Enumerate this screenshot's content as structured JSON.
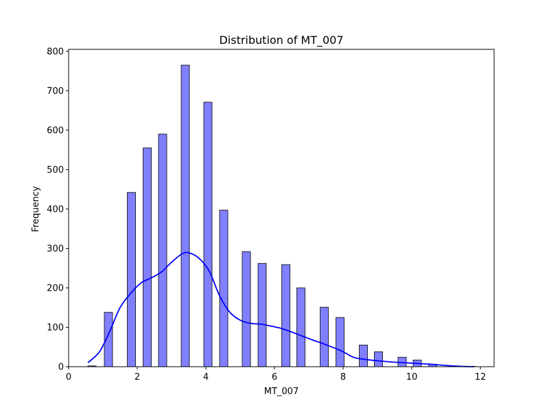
{
  "chart_data": {
    "type": "bar",
    "title": "Distribution of MT_007",
    "xlabel": "MT_007",
    "ylabel": "Frequency",
    "xlim": [
      0,
      12.4
    ],
    "ylim": [
      0,
      805
    ],
    "xticks": [
      0,
      2,
      4,
      6,
      8,
      10,
      12
    ],
    "yticks": [
      0,
      100,
      200,
      300,
      400,
      500,
      600,
      700,
      800
    ],
    "bin_width": 0.24,
    "bins": [
      {
        "x0": 0.56,
        "value": 2
      },
      {
        "x0": 1.04,
        "value": 138
      },
      {
        "x0": 1.71,
        "value": 442
      },
      {
        "x0": 2.17,
        "value": 555
      },
      {
        "x0": 2.62,
        "value": 590
      },
      {
        "x0": 3.28,
        "value": 765
      },
      {
        "x0": 3.94,
        "value": 671
      },
      {
        "x0": 4.4,
        "value": 397
      },
      {
        "x0": 5.06,
        "value": 292
      },
      {
        "x0": 5.52,
        "value": 262
      },
      {
        "x0": 6.21,
        "value": 259
      },
      {
        "x0": 6.65,
        "value": 200
      },
      {
        "x0": 7.33,
        "value": 151
      },
      {
        "x0": 7.79,
        "value": 125
      },
      {
        "x0": 8.47,
        "value": 55
      },
      {
        "x0": 8.91,
        "value": 38
      },
      {
        "x0": 9.6,
        "value": 24
      },
      {
        "x0": 10.04,
        "value": 17
      },
      {
        "x0": 10.49,
        "value": 6
      },
      {
        "x0": 11.17,
        "value": 1
      },
      {
        "x0": 11.62,
        "value": 1
      }
    ],
    "kde": {
      "x": [
        0.56,
        0.9,
        1.2,
        1.5,
        1.8,
        2.1,
        2.4,
        2.7,
        3.0,
        3.3,
        3.5,
        3.8,
        4.1,
        4.4,
        4.7,
        5.0,
        5.3,
        5.6,
        5.9,
        6.2,
        6.5,
        6.8,
        7.1,
        7.4,
        7.7,
        8.0,
        8.3,
        8.6,
        9.0,
        9.4,
        9.8,
        10.2,
        10.6,
        11.0,
        11.4,
        11.8
      ],
      "y": [
        10,
        38,
        90,
        150,
        185,
        212,
        225,
        240,
        265,
        286,
        289,
        275,
        242,
        180,
        138,
        118,
        110,
        108,
        103,
        97,
        88,
        78,
        68,
        59,
        49,
        38,
        24,
        19,
        15,
        12,
        10,
        8,
        6,
        3,
        1,
        0
      ]
    },
    "bar_fill": "#8080ff",
    "bar_edge": "#000000",
    "kde_color": "#0000ff",
    "grid": false,
    "legend": "none"
  }
}
